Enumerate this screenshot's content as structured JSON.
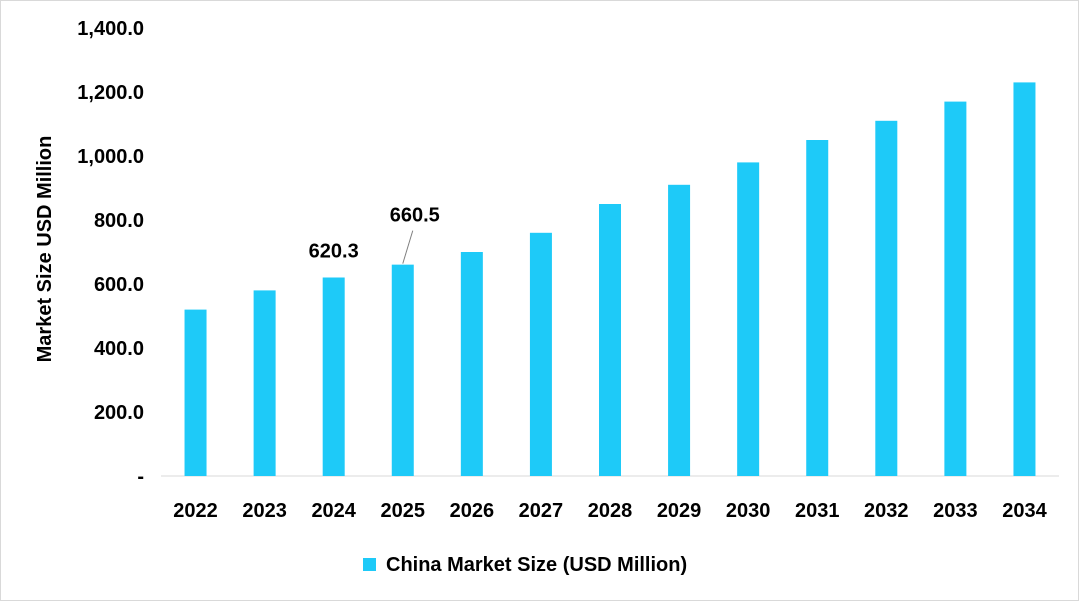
{
  "chart_data": {
    "type": "bar",
    "title": "",
    "xlabel": "",
    "ylabel": "Market Size USD Million",
    "ylim": [
      0,
      1400
    ],
    "ytick_values": [
      0,
      200,
      400,
      600,
      800,
      1000,
      1200,
      1400
    ],
    "ytick_labels": [
      "-",
      "200.0",
      "400.0",
      "600.0",
      "800.0",
      "1,000.0",
      "1,200.0",
      "1,400.0"
    ],
    "categories": [
      "2022",
      "2023",
      "2024",
      "2025",
      "2026",
      "2027",
      "2028",
      "2029",
      "2030",
      "2031",
      "2032",
      "2033",
      "2034"
    ],
    "series": [
      {
        "name": "China Market Size (USD Million)",
        "color": "#1ECAF8",
        "values": [
          520,
          580,
          620.3,
          660.5,
          700,
          760,
          850,
          910,
          980,
          1050,
          1110,
          1170,
          1230
        ]
      }
    ],
    "data_labels": [
      {
        "category": "2024",
        "text": "620.3",
        "leader": false
      },
      {
        "category": "2025",
        "text": "660.5",
        "leader": true
      }
    ],
    "grid": false,
    "legend_position": "bottom-center"
  }
}
